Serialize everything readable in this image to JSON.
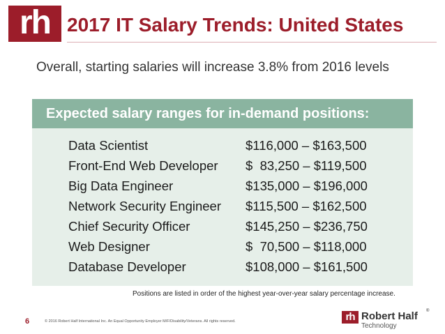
{
  "header": {
    "logo_text": "rh",
    "title": "2017 IT Salary Trends: United States",
    "subtitle": "Overall, starting salaries will increase 3.8% from 2016 levels"
  },
  "panel": {
    "heading": "Expected salary ranges for in-demand positions:",
    "rows": [
      {
        "position": "Data Scientist",
        "range": "$116,000 – $163,500"
      },
      {
        "position": "Front-End Web Developer",
        "range": "$  83,250 – $119,500"
      },
      {
        "position": "Big Data Engineer",
        "range": "$135,000 – $196,000"
      },
      {
        "position": "Network Security Engineer",
        "range": "$115,500 – $162,500"
      },
      {
        "position": "Chief Security Officer",
        "range": "$145,250 – $236,750"
      },
      {
        "position": "Web Designer",
        "range": "$  70,500 – $118,000"
      },
      {
        "position": "Database Developer",
        "range": "$108,000 – $161,500"
      }
    ]
  },
  "footnote": "Positions are listed in order of the highest year-over-year salary percentage increase.",
  "footer": {
    "page_number": "6",
    "copyright": "© 2016 Robert Half International Inc. An Equal Opportunity Employer M/F/Disability/Veterans. All rights reserved.",
    "brand_mark": "rh",
    "brand_name": "Robert Half",
    "brand_reg": "®",
    "brand_sub": "Technology"
  },
  "colors": {
    "brand_red": "#9c1d2a",
    "header_green": "#8ab4a0",
    "panel_bg": "#e6efe9"
  }
}
